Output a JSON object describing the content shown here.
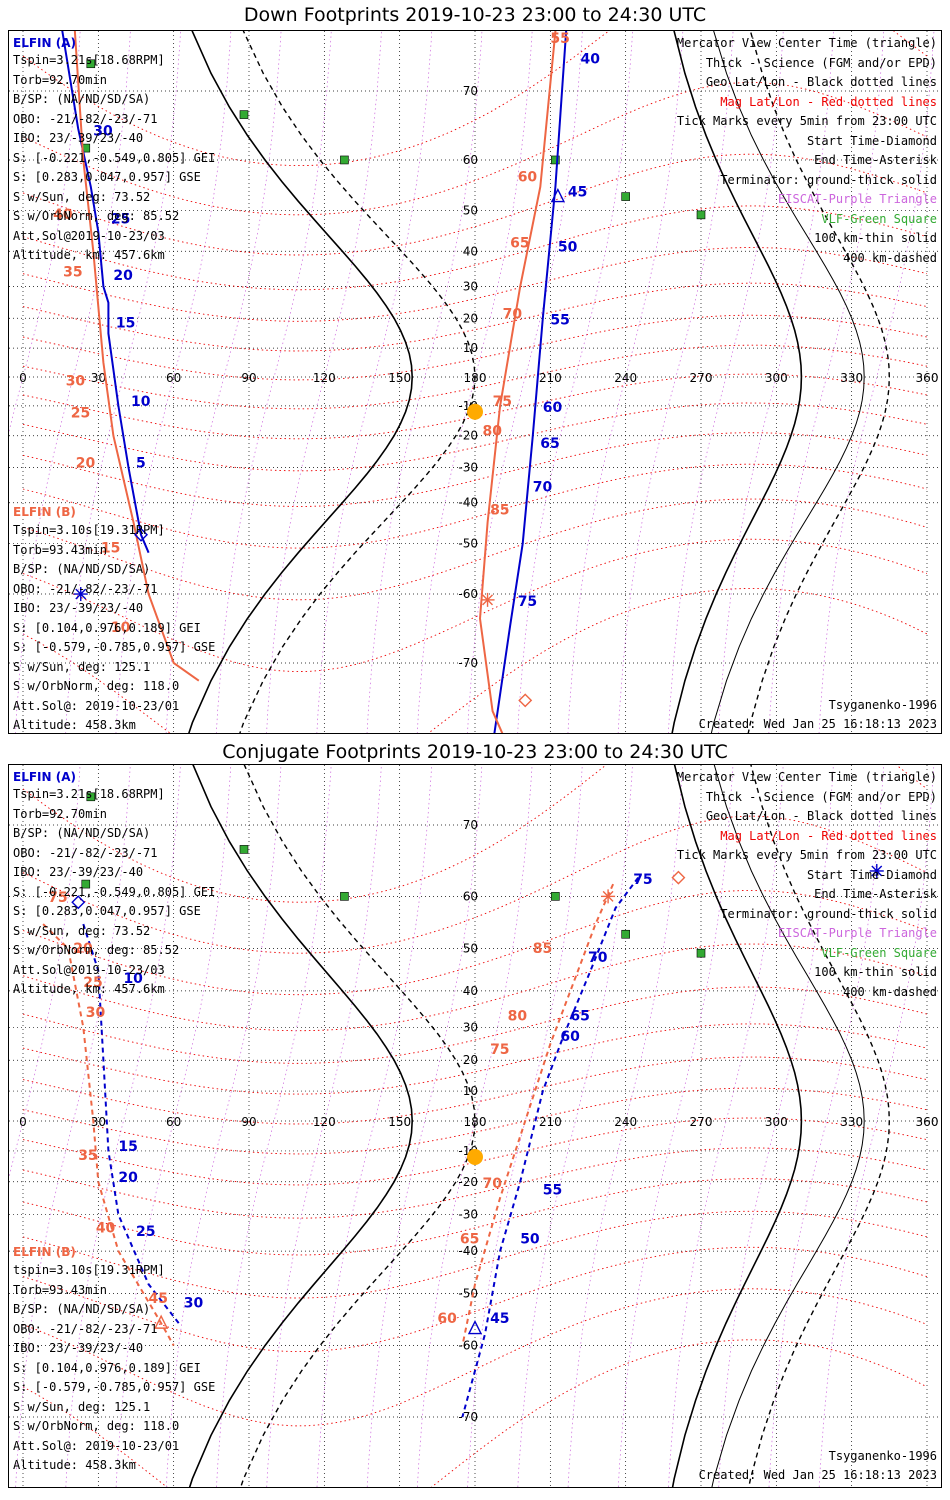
{
  "panels": [
    {
      "title": "Down Footprints 2019-10-23 23:00 to 24:30 UTC",
      "elfin_a": {
        "name": "ELFIN (A)",
        "lines": [
          "Tspin=3.21s[18.68RPM]",
          "Torb=92.70min",
          "B/SP: (NA/ND/SD/SA)",
          "OBO: -21/-82/-23/-71",
          "IBO: 23/-39/23/-40",
          "S: [-0.221,-0.549,0.805] GEI",
          "S: [0.283,0.047,0.957] GSE",
          "S w/Sun, deg: 73.52",
          "S w/OrbNorm, deg: 85.52",
          "Att.Sol@2019-10-23/03",
          "Altitude, km: 457.6km"
        ]
      },
      "elfin_b": {
        "name": "ELFIN (B)",
        "lines": [
          "Tspin=3.10s[19.31RPM]",
          "Torb=93.43min",
          "B/SP: (NA/ND/SD/SA)",
          "OBO: -21/-82/-23/-71",
          "IBO: 23/-39/23/-40",
          "S: [0.104,0.976,0.189] GEI",
          "S: [-0.579,-0.785,0.957] GSE",
          "S w/Sun, deg: 125.1",
          "S w/OrbNorm, deg: 118.0",
          "Att.Sol@: 2019-10-23/01",
          "Altitude: 458.3km"
        ]
      },
      "legend": [
        {
          "text": "Mercator View Center Time (triangle)",
          "color": "black"
        },
        {
          "text": "Thick - Science (FGM and/or EPD)",
          "color": "black"
        },
        {
          "text": "Geo Lat/Lon - Black dotted lines",
          "color": "black"
        },
        {
          "text": "Mag Lat/Lon - Red dotted lines",
          "color": "red"
        },
        {
          "text": "Tick Marks every 5min from 23:00 UTC",
          "color": "black"
        },
        {
          "text": "Start Time-Diamond",
          "color": "black"
        },
        {
          "text": "End Time-Asterisk",
          "color": "black"
        },
        {
          "text": "Terminator: ground-thick solid",
          "color": "black"
        },
        {
          "text": "EISCAT-Purple Triangle",
          "color": "purple"
        },
        {
          "text": "VLF-Green Square",
          "color": "green"
        },
        {
          "text": "100 km-thin solid",
          "color": "black"
        },
        {
          "text": "400 km-dashed",
          "color": "black"
        }
      ],
      "model": "Tsyganenko-1996",
      "created": "Created: Wed Jan 25 16:18:13 2023"
    },
    {
      "title": "Conjugate Footprints 2019-10-23 23:00 to 24:30 UTC",
      "elfin_a": {
        "name": "ELFIN (A)",
        "lines": [
          "Tspin=3.21s[18.68RPM]",
          "Torb=92.70min",
          "B/SP: (NA/ND/SD/SA)",
          "OBO: -21/-82/-23/-71",
          "IBO: 23/-39/23/-40",
          "S: [-0.221,-0.549,0.805] GEI",
          "S: [0.283,0.047,0.957] GSE",
          "S w/Sun, deg: 73.52",
          "S w/OrbNorm, deg: 85.52",
          "Att.Sol@2019-10-23/03",
          "Altitude, km: 457.6km"
        ]
      },
      "elfin_b": {
        "name": "ELFIN (B)",
        "lines": [
          "tspin=3.10s[19.31RPM]",
          "Torb=93.43min",
          "B/SP: (NA/ND/SD/SA)",
          "OBO: -21/-82/-23/-71",
          "IBO: 23/-39/23/-40",
          "S: [0.104,0.976,0.189] GEI",
          "S: [-0.579,-0.785,0.957] GSE",
          "S w/Sun, deg: 125.1",
          "S w/OrbNorm, deg: 118.0",
          "Att.Sol@: 2019-10-23/01",
          "Altitude: 458.3km"
        ]
      },
      "legend": [
        {
          "text": "Mercator View Center Time (triangle)",
          "color": "black"
        },
        {
          "text": "Thick - Science (FGM and/or EPD)",
          "color": "black"
        },
        {
          "text": "Geo Lat/Lon - Black dotted lines",
          "color": "black"
        },
        {
          "text": "Mag Lat/Lon - Red dotted lines",
          "color": "red"
        },
        {
          "text": "Tick Marks every 5min from 23:00 UTC",
          "color": "black"
        },
        {
          "text": "Start Time-Diamond",
          "color": "black"
        },
        {
          "text": "End Time-Asterisk",
          "color": "black"
        },
        {
          "text": "Terminator: ground-thick solid",
          "color": "black"
        },
        {
          "text": "EISCAT-Purple Triangle",
          "color": "purple"
        },
        {
          "text": "VLF-Green Square",
          "color": "green"
        },
        {
          "text": "100 km-thin solid",
          "color": "black"
        },
        {
          "text": "400 km-dashed",
          "color": "black"
        }
      ],
      "model": "Tsyganenko-1996",
      "created": "Created: Wed Jan 25 16:18:13 2023"
    }
  ],
  "colors": {
    "elfin_a": "#0000cc",
    "elfin_b": "#ee6644",
    "geo_grid": "#000000",
    "mag_grid": "#ee0000",
    "eiscat": "#cc66dd",
    "vlf": "#33aa33",
    "sun": "#ffaa00"
  },
  "chart_data": [
    {
      "type": "scatter",
      "title": "Down Footprints 2019-10-23 23:00 to 24:30 UTC",
      "projection": "mercator",
      "xlabel": "",
      "ylabel": "",
      "xlim": [
        0,
        360
      ],
      "ylim": [
        -80,
        80
      ],
      "x_ticks": [
        0,
        30,
        60,
        90,
        120,
        150,
        180,
        210,
        240,
        270,
        300,
        330,
        360
      ],
      "y_ticks": [
        70,
        60,
        50,
        40,
        30,
        20,
        10,
        -10,
        -20,
        -30,
        -40,
        -50,
        -60,
        -70
      ],
      "grid": true,
      "series": [
        {
          "name": "ELFIN (A)",
          "line": "solid",
          "points": [
            [
              14,
              78
            ],
            [
              22,
              65
            ],
            [
              27,
              55
            ],
            [
              30,
              45
            ],
            [
              32,
              30
            ],
            [
              34,
              25
            ],
            [
              34,
              15
            ],
            [
              38,
              -10
            ],
            [
              42,
              -30
            ],
            [
              47,
              -48
            ],
            [
              50,
              -52
            ]
          ],
          "tick_labels": [
            {
              "label": "30",
              "lon": 28,
              "lat": 64
            },
            {
              "label": "25",
              "lon": 35,
              "lat": 47
            },
            {
              "label": "20",
              "lon": 36,
              "lat": 32
            },
            {
              "label": "15",
              "lon": 37,
              "lat": 17
            },
            {
              "label": "10",
              "lon": 43,
              "lat": -10
            },
            {
              "label": "5",
              "lon": 45,
              "lat": -30
            }
          ]
        },
        {
          "name": "ELFIN (B)",
          "line": "solid",
          "points": [
            [
              20,
              78
            ],
            [
              24,
              60
            ],
            [
              28,
              40
            ],
            [
              32,
              5
            ],
            [
              36,
              -20
            ],
            [
              44,
              -45
            ],
            [
              50,
              -60
            ],
            [
              60,
              -70
            ],
            [
              70,
              -72
            ]
          ],
          "tick_labels": [
            {
              "label": "40",
              "lon": 12,
              "lat": 48
            },
            {
              "label": "35",
              "lon": 16,
              "lat": 33
            },
            {
              "label": "30",
              "lon": 17,
              "lat": -3
            },
            {
              "label": "25",
              "lon": 19,
              "lat": -14
            },
            {
              "label": "20",
              "lon": 21,
              "lat": -30
            },
            {
              "label": "15",
              "lon": 31,
              "lat": -52
            },
            {
              "label": "10",
              "lon": 35,
              "lat": -66
            }
          ]
        },
        {
          "name": "ELFIN (A)",
          "line": "solid",
          "points": [
            [
              217,
              78
            ],
            [
              212,
              55
            ],
            [
              207,
              20
            ],
            [
              203,
              -20
            ],
            [
              199,
              -50
            ],
            [
              194,
              -65
            ],
            [
              186,
              -79
            ]
          ],
          "tick_labels": [
            {
              "label": "40",
              "lon": 222,
              "lat": 73
            },
            {
              "label": "45",
              "lon": 217,
              "lat": 53
            },
            {
              "label": "50",
              "lon": 213,
              "lat": 40
            },
            {
              "label": "55",
              "lon": 210,
              "lat": 18
            },
            {
              "label": "60",
              "lon": 207,
              "lat": -12
            },
            {
              "label": "65",
              "lon": 206,
              "lat": -24
            },
            {
              "label": "70",
              "lon": 203,
              "lat": -37
            },
            {
              "label": "75",
              "lon": 197,
              "lat": -62
            }
          ]
        },
        {
          "name": "ELFIN (B)",
          "line": "solid",
          "points": [
            [
              213,
              78
            ],
            [
              206,
              55
            ],
            [
              198,
              30
            ],
            [
              190,
              -10
            ],
            [
              185,
              -45
            ],
            [
              182,
              -64
            ],
            [
              187,
              -75
            ],
            [
              196,
              -79
            ]
          ],
          "tick_labels": [
            {
              "label": "55",
              "lon": 210,
              "lat": 75
            },
            {
              "label": "60",
              "lon": 197,
              "lat": 56
            },
            {
              "label": "65",
              "lon": 194,
              "lat": 41
            },
            {
              "label": "70",
              "lon": 191,
              "lat": 20
            },
            {
              "label": "75",
              "lon": 187,
              "lat": -10
            },
            {
              "label": "80",
              "lon": 183,
              "lat": -20
            },
            {
              "label": "85",
              "lon": 186,
              "lat": -43
            }
          ]
        }
      ],
      "markers": [
        {
          "kind": "diamond",
          "series": "ELFIN (A)",
          "lon": 47,
          "lat": -48
        },
        {
          "kind": "asterisk",
          "series": "ELFIN (A)",
          "lon": 23,
          "lat": -60
        },
        {
          "kind": "asterisk",
          "series": "ELFIN (B)",
          "lon": 185,
          "lat": -61
        },
        {
          "kind": "diamond",
          "series": "ELFIN (B)",
          "lon": 200,
          "lat": -74
        },
        {
          "kind": "triangle",
          "series": "ELFIN (A)",
          "lon": 213,
          "lat": 53
        },
        {
          "kind": "sun",
          "lon": 180,
          "lat": -12
        }
      ],
      "vlf_stations": [
        [
          27,
          73
        ],
        [
          25,
          62
        ],
        [
          88,
          67
        ],
        [
          128,
          60
        ],
        [
          212,
          60
        ],
        [
          240,
          53
        ],
        [
          270,
          49
        ]
      ],
      "eiscat_stations": [
        [
          21,
          79
        ]
      ]
    },
    {
      "type": "scatter",
      "title": "Conjugate Footprints 2019-10-23 23:00 to 24:30 UTC",
      "projection": "mercator",
      "xlabel": "",
      "ylabel": "",
      "xlim": [
        0,
        360
      ],
      "ylim": [
        -80,
        80
      ],
      "x_ticks": [
        0,
        30,
        60,
        90,
        120,
        150,
        180,
        210,
        240,
        270,
        300,
        330,
        360
      ],
      "y_ticks": [
        70,
        60,
        50,
        40,
        30,
        20,
        10,
        -10,
        -20,
        -30,
        -40,
        -50,
        -60,
        -70
      ],
      "grid": true,
      "series": [
        {
          "name": "ELFIN (A)",
          "line": "dashed",
          "points": [
            [
              24,
              55
            ],
            [
              30,
              45
            ],
            [
              32,
              20
            ],
            [
              34,
              -10
            ],
            [
              38,
              -30
            ],
            [
              50,
              -48
            ],
            [
              62,
              -56
            ]
          ],
          "tick_labels": [
            {
              "label": "10",
              "lon": 40,
              "lat": 42
            },
            {
              "label": "15",
              "lon": 38,
              "lat": -10
            },
            {
              "label": "20",
              "lon": 38,
              "lat": -20
            },
            {
              "label": "25",
              "lon": 45,
              "lat": -36
            },
            {
              "label": "30",
              "lon": 64,
              "lat": -53
            }
          ]
        },
        {
          "name": "ELFIN (B)",
          "line": "dashed",
          "points": [
            [
              8,
              55
            ],
            [
              18,
              50
            ],
            [
              24,
              30
            ],
            [
              28,
              0
            ],
            [
              30,
              -20
            ],
            [
              38,
              -40
            ],
            [
              55,
              -56
            ],
            [
              60,
              -60
            ]
          ],
          "tick_labels": [
            {
              "label": "75",
              "lon": 10,
              "lat": 59
            },
            {
              "label": "20",
              "lon": 20,
              "lat": 49
            },
            {
              "label": "25",
              "lon": 24,
              "lat": 41
            },
            {
              "label": "30",
              "lon": 25,
              "lat": 33
            },
            {
              "label": "35",
              "lon": 22,
              "lat": -13
            },
            {
              "label": "40",
              "lon": 29,
              "lat": -35
            },
            {
              "label": "45",
              "lon": 50,
              "lat": -52
            }
          ]
        },
        {
          "name": "ELFIN (A)",
          "line": "dashed",
          "points": [
            [
              245,
              63
            ],
            [
              236,
              58
            ],
            [
              226,
              45
            ],
            [
              215,
              27
            ],
            [
              207,
              10
            ],
            [
              198,
              -20
            ],
            [
              190,
              -40
            ],
            [
              184,
              -58
            ],
            [
              175,
              -70
            ]
          ],
          "tick_labels": [
            {
              "label": "75",
              "lon": 243,
              "lat": 62
            },
            {
              "label": "70",
              "lon": 225,
              "lat": 47
            },
            {
              "label": "65",
              "lon": 218,
              "lat": 32
            },
            {
              "label": "60",
              "lon": 214,
              "lat": 26
            },
            {
              "label": "55",
              "lon": 207,
              "lat": -24
            },
            {
              "label": "50",
              "lon": 198,
              "lat": -38
            },
            {
              "label": "45",
              "lon": 186,
              "lat": -56
            }
          ]
        },
        {
          "name": "ELFIN (B)",
          "line": "dashed",
          "points": [
            [
              235,
              62
            ],
            [
              228,
              55
            ],
            [
              218,
              40
            ],
            [
              210,
              25
            ],
            [
              200,
              0
            ],
            [
              190,
              -25
            ],
            [
              180,
              -48
            ],
            [
              175,
              -60
            ]
          ],
          "tick_labels": [
            {
              "label": "85",
              "lon": 203,
              "lat": 49
            },
            {
              "label": "80",
              "lon": 193,
              "lat": 32
            },
            {
              "label": "75",
              "lon": 186,
              "lat": 22
            },
            {
              "label": "70",
              "lon": 183,
              "lat": -22
            },
            {
              "label": "65",
              "lon": 174,
              "lat": -38
            },
            {
              "label": "60",
              "lon": 165,
              "lat": -56
            }
          ]
        }
      ],
      "markers": [
        {
          "kind": "diamond",
          "series": "ELFIN (A)",
          "lon": 22,
          "lat": 59
        },
        {
          "kind": "asterisk",
          "series": "ELFIN (A)",
          "lon": 340,
          "lat": 64
        },
        {
          "kind": "asterisk",
          "series": "ELFIN (B)",
          "lon": 233,
          "lat": 60
        },
        {
          "kind": "diamond",
          "series": "ELFIN (B)",
          "lon": 261,
          "lat": 63
        },
        {
          "kind": "triangle",
          "series": "ELFIN (A)",
          "lon": 180,
          "lat": -57
        },
        {
          "kind": "triangle",
          "series": "ELFIN (B)",
          "lon": 55,
          "lat": -56
        },
        {
          "kind": "sun",
          "lon": 180,
          "lat": -12
        }
      ],
      "vlf_stations": [
        [
          27,
          73
        ],
        [
          25,
          62
        ],
        [
          88,
          67
        ],
        [
          128,
          60
        ],
        [
          212,
          60
        ],
        [
          240,
          53
        ],
        [
          270,
          49
        ]
      ],
      "eiscat_stations": [
        [
          21,
          79
        ]
      ]
    }
  ]
}
